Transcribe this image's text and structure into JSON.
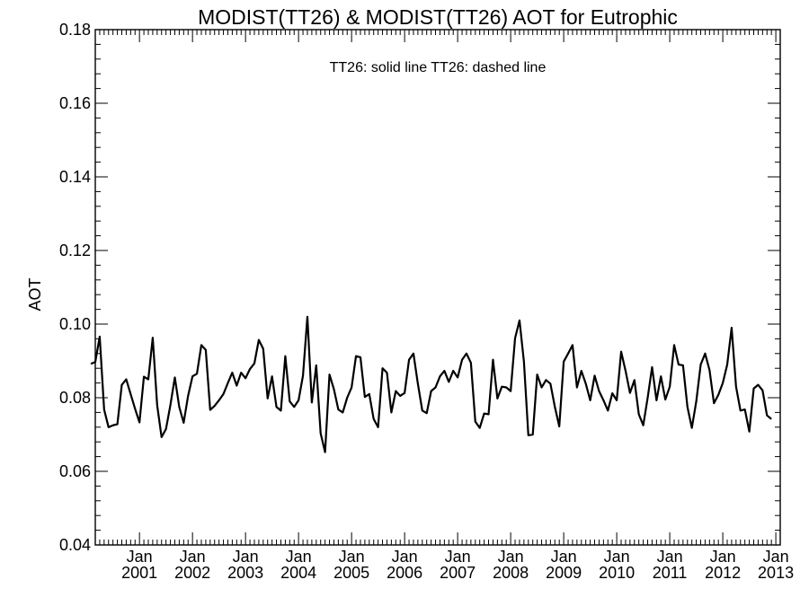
{
  "chart_data": {
    "type": "line",
    "title": "MODIST(TT26) & MODIST(TT26)  AOT for Eutrophic",
    "legend_text": "TT26: solid line   TT26: dashed line",
    "xlabel": "",
    "ylabel": "AOT",
    "ylim": [
      0.04,
      0.18
    ],
    "y_major_ticks": [
      0.04,
      0.06,
      0.08,
      0.1,
      0.12,
      0.14,
      0.16,
      0.18
    ],
    "y_tick_labels": [
      "0.04",
      "0.06",
      "0.08",
      "0.10",
      "0.12",
      "0.14",
      "0.16",
      "0.18"
    ],
    "x_range": [
      "2000-03",
      "2013-02"
    ],
    "x_tick_labels": [
      {
        "month": "Jan",
        "year": "2001"
      },
      {
        "month": "Jan",
        "year": "2002"
      },
      {
        "month": "Jan",
        "year": "2003"
      },
      {
        "month": "Jan",
        "year": "2004"
      },
      {
        "month": "Jan",
        "year": "2005"
      },
      {
        "month": "Jan",
        "year": "2006"
      },
      {
        "month": "Jan",
        "year": "2007"
      },
      {
        "month": "Jan",
        "year": "2008"
      },
      {
        "month": "Jan",
        "year": "2009"
      },
      {
        "month": "Jan",
        "year": "2010"
      },
      {
        "month": "Jan",
        "year": "2011"
      },
      {
        "month": "Jan",
        "year": "2012"
      },
      {
        "month": "Jan",
        "year": "2013"
      }
    ],
    "grid": false,
    "series": [
      {
        "style": "solid",
        "color": "#000000",
        "start": "2000-02",
        "values": [
          0.0892,
          0.0897,
          0.0966,
          0.0768,
          0.072,
          0.0725,
          0.0728,
          0.0835,
          0.085,
          0.081,
          0.077,
          0.0733,
          0.0857,
          0.085,
          0.0963,
          0.078,
          0.0693,
          0.0715,
          0.078,
          0.0855,
          0.0775,
          0.0732,
          0.0805,
          0.0858,
          0.0865,
          0.0943,
          0.093,
          0.0767,
          0.0778,
          0.0793,
          0.081,
          0.084,
          0.0868,
          0.0833,
          0.0868,
          0.0853,
          0.0878,
          0.0893,
          0.0957,
          0.0933,
          0.0798,
          0.0858,
          0.0775,
          0.0765,
          0.0913,
          0.079,
          0.0775,
          0.0793,
          0.086,
          0.102,
          0.0787,
          0.0888,
          0.0703,
          0.0652,
          0.0863,
          0.0823,
          0.0768,
          0.076,
          0.08,
          0.0828,
          0.0913,
          0.091,
          0.0802,
          0.081,
          0.0742,
          0.072,
          0.088,
          0.0868,
          0.076,
          0.0818,
          0.0805,
          0.0813,
          0.0903,
          0.092,
          0.0838,
          0.0765,
          0.0758,
          0.0818,
          0.0828,
          0.0858,
          0.0873,
          0.0843,
          0.0873,
          0.0855,
          0.0903,
          0.092,
          0.0895,
          0.0735,
          0.0718,
          0.0757,
          0.0755,
          0.0903,
          0.0798,
          0.083,
          0.0828,
          0.0818,
          0.0962,
          0.101,
          0.0898,
          0.0698,
          0.07,
          0.0863,
          0.0828,
          0.0848,
          0.0838,
          0.0775,
          0.0722,
          0.0898,
          0.092,
          0.0943,
          0.0828,
          0.0873,
          0.0838,
          0.0793,
          0.086,
          0.0818,
          0.0793,
          0.0765,
          0.0812,
          0.0793,
          0.0925,
          0.0873,
          0.0813,
          0.0848,
          0.0755,
          0.0725,
          0.08,
          0.0883,
          0.0793,
          0.0858,
          0.0795,
          0.083,
          0.0943,
          0.089,
          0.0888,
          0.0775,
          0.0718,
          0.079,
          0.089,
          0.092,
          0.0875,
          0.0785,
          0.0808,
          0.084,
          0.089,
          0.099,
          0.083,
          0.0765,
          0.0768,
          0.0708,
          0.0825,
          0.0835,
          0.082,
          0.0752,
          0.0742
        ]
      }
    ]
  }
}
